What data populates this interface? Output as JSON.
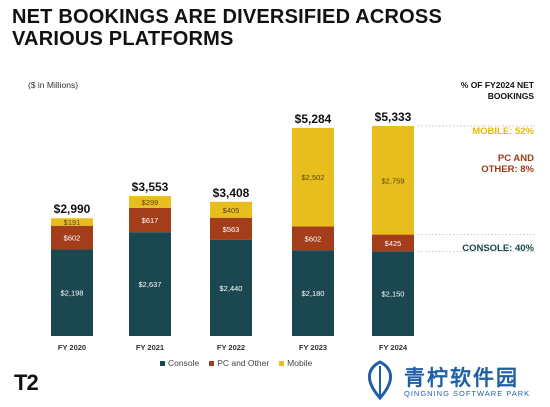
{
  "title": "NET BOOKINGS ARE DIVERSIFIED ACROSS VARIOUS PLATFORMS",
  "subnote": "($ in Millions)",
  "right_header": "% OF FY2024 NET BOOKINGS",
  "shares": {
    "mobile": "MOBILE: 52%",
    "pc": "PC AND OTHER: 8%",
    "console": "CONSOLE: 40%"
  },
  "logo_text": "T2",
  "watermark": {
    "text": "青柠软件园",
    "sub": "QINGNING SOFTWARE PARK"
  },
  "colors": {
    "console": "#1a4750",
    "pc": "#a33d1a",
    "mobile": "#e8bd1e"
  },
  "chart_data": {
    "type": "bar",
    "stacked": true,
    "categories": [
      "FY 2020",
      "FY 2021",
      "FY 2022",
      "FY 2023",
      "FY 2024"
    ],
    "series": [
      {
        "name": "Console",
        "values": [
          2198,
          2637,
          2440,
          2180,
          2150
        ],
        "labels": [
          "$2,198",
          "$2,637",
          "$2,440",
          "$2,180",
          "$2,150"
        ]
      },
      {
        "name": "PC and Other",
        "values": [
          602,
          617,
          563,
          602,
          425
        ],
        "labels": [
          "$602",
          "$617",
          "$563",
          "$602",
          "$425"
        ]
      },
      {
        "name": "Mobile",
        "values": [
          191,
          299,
          405,
          2502,
          2759
        ],
        "labels": [
          "$191",
          "$299",
          "$405",
          "$2,502",
          "$2,759"
        ]
      }
    ],
    "totals": [
      "$2,990",
      "$3,553",
      "$3,408",
      "$5,284",
      "$5,333"
    ],
    "legend_position": "bottom"
  }
}
